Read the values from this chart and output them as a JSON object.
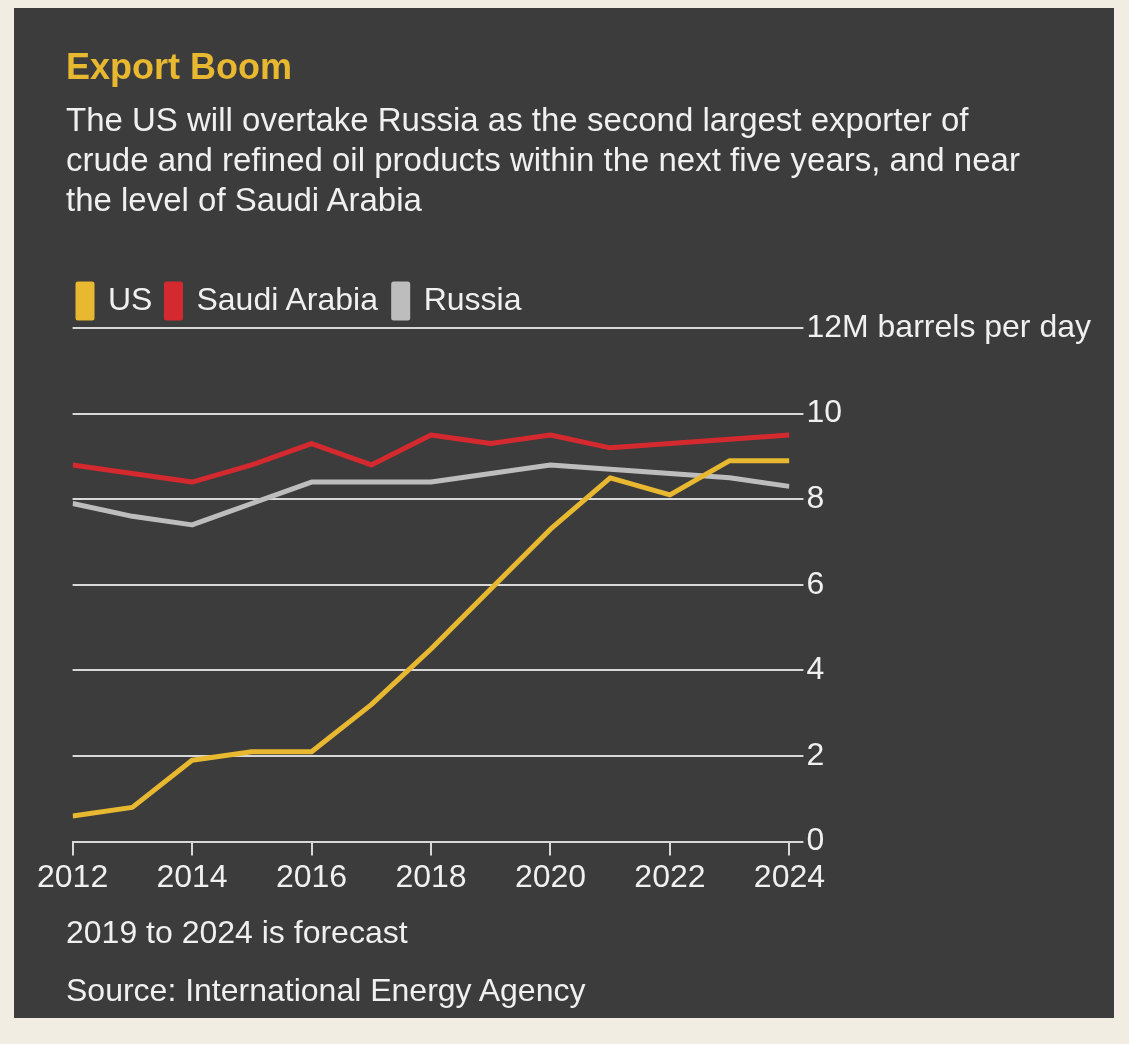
{
  "chart_data": {
    "type": "line",
    "title": "Export Boom",
    "subtitle": "The US will overtake Russia as the second largest exporter of crude and refined oil products within the next five years, and near the level of Saudi Arabia",
    "x": [
      2012,
      2013,
      2014,
      2015,
      2016,
      2017,
      2018,
      2019,
      2020,
      2021,
      2022,
      2023,
      2024
    ],
    "series": [
      {
        "name": "US",
        "color": "#e8b830",
        "values": [
          0.6,
          0.8,
          1.9,
          2.1,
          2.1,
          3.2,
          4.5,
          5.9,
          7.3,
          8.5,
          8.1,
          8.9,
          8.9
        ]
      },
      {
        "name": "Saudi Arabia",
        "color": "#d42a2f",
        "values": [
          8.8,
          8.6,
          8.4,
          8.8,
          9.3,
          8.8,
          9.5,
          9.3,
          9.5,
          9.2,
          9.3,
          9.4,
          9.5
        ]
      },
      {
        "name": "Russia",
        "color": "#bdbdbd",
        "values": [
          7.9,
          7.6,
          7.4,
          7.9,
          8.4,
          8.4,
          8.4,
          8.6,
          8.8,
          8.7,
          8.6,
          8.5,
          8.3
        ]
      }
    ],
    "xlim": [
      2012,
      2024
    ],
    "xticks": [
      2012,
      2014,
      2016,
      2018,
      2020,
      2022,
      2024
    ],
    "ylim": [
      0,
      12
    ],
    "yticks": [
      0,
      2,
      4,
      6,
      8,
      10,
      {
        "value": 12,
        "label": "12M barrels per day"
      }
    ],
    "grid": "y",
    "legend": "top left",
    "marker": "none",
    "line_style": "solid",
    "annotations": [
      "2019 to 2024 is forecast",
      "Source: International Energy Agency"
    ]
  }
}
